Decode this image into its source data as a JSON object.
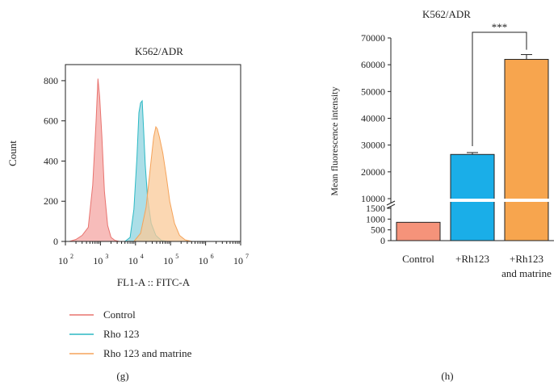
{
  "chart_data": [
    {
      "panel": "(g)",
      "type": "area",
      "title": "K562/ADR",
      "xlabel": "FL1-A :: FITC-A",
      "ylabel": "Count",
      "xscale": "log",
      "xlim": [
        100,
        10000000
      ],
      "ylim": [
        0,
        880
      ],
      "xticks": [
        {
          "value": 100,
          "base": "10",
          "exp": "2"
        },
        {
          "value": 1000,
          "base": "10",
          "exp": "3"
        },
        {
          "value": 10000,
          "base": "10",
          "exp": "4"
        },
        {
          "value": 100000,
          "base": "10",
          "exp": "5"
        },
        {
          "value": 1000000,
          "base": "10",
          "exp": "6"
        },
        {
          "value": 10000000,
          "base": "10",
          "exp": "7"
        }
      ],
      "yticks": [
        {
          "value": 0,
          "label": "0"
        },
        {
          "value": 200,
          "label": "200"
        },
        {
          "value": 400,
          "label": "400"
        },
        {
          "value": 600,
          "label": "600"
        },
        {
          "value": 800,
          "label": "800"
        }
      ],
      "legend_position": "bottom",
      "series": [
        {
          "name": "Control",
          "color": "#e8736f",
          "fill": "#f4a6a3",
          "x": [
            130,
            200,
            300,
            450,
            600,
            750,
            850,
            950,
            1100,
            1300,
            1600,
            2000,
            2600,
            3500,
            5000
          ],
          "y": [
            0,
            10,
            30,
            70,
            280,
            600,
            810,
            720,
            520,
            250,
            80,
            20,
            5,
            0,
            0
          ]
        },
        {
          "name": "Rho 123",
          "color": "#2bb9c4",
          "fill": "#8fd3df",
          "x": [
            5000,
            7000,
            9000,
            11000,
            12500,
            14000,
            15500,
            17000,
            19000,
            22000,
            28000,
            38000,
            55000,
            80000
          ],
          "y": [
            0,
            20,
            160,
            420,
            640,
            690,
            700,
            560,
            380,
            220,
            90,
            30,
            5,
            0
          ]
        },
        {
          "name": "Rho 123 and matrine",
          "color": "#f5a35a",
          "fill": "#f9c998",
          "x": [
            9000,
            14000,
            20000,
            27000,
            33000,
            38000,
            42000,
            48000,
            60000,
            75000,
            95000,
            130000,
            180000,
            260000,
            400000
          ],
          "y": [
            0,
            40,
            170,
            380,
            520,
            570,
            560,
            520,
            440,
            330,
            200,
            90,
            30,
            8,
            0
          ]
        }
      ]
    },
    {
      "panel": "(h)",
      "type": "bar",
      "title": "K562/ADR",
      "ylabel": "Mean fluorescence intensity",
      "categories": [
        "Control",
        "+Rh123",
        "+Rh123"
      ],
      "category_sublabels": [
        "",
        "",
        "and matrine"
      ],
      "y_axis_break": [
        1500,
        10000
      ],
      "yticks_low": [
        {
          "value": 0,
          "label": "0"
        },
        {
          "value": 500,
          "label": "500"
        },
        {
          "value": 1000,
          "label": "1000"
        },
        {
          "value": 1500,
          "label": "1500"
        }
      ],
      "yticks_high": [
        {
          "value": 10000,
          "label": "10000"
        },
        {
          "value": 20000,
          "label": "20000"
        },
        {
          "value": 30000,
          "label": "30000"
        },
        {
          "value": 40000,
          "label": "40000"
        },
        {
          "value": 50000,
          "label": "50000"
        },
        {
          "value": 60000,
          "label": "60000"
        },
        {
          "value": 70000,
          "label": "70000"
        }
      ],
      "values": [
        850,
        26500,
        62000
      ],
      "errors": [
        0,
        700,
        1800
      ],
      "colors": [
        "#f5937a",
        "#1aaee8",
        "#f7a54e"
      ],
      "significance": {
        "from": 1,
        "to": 2,
        "label": "***"
      }
    }
  ]
}
